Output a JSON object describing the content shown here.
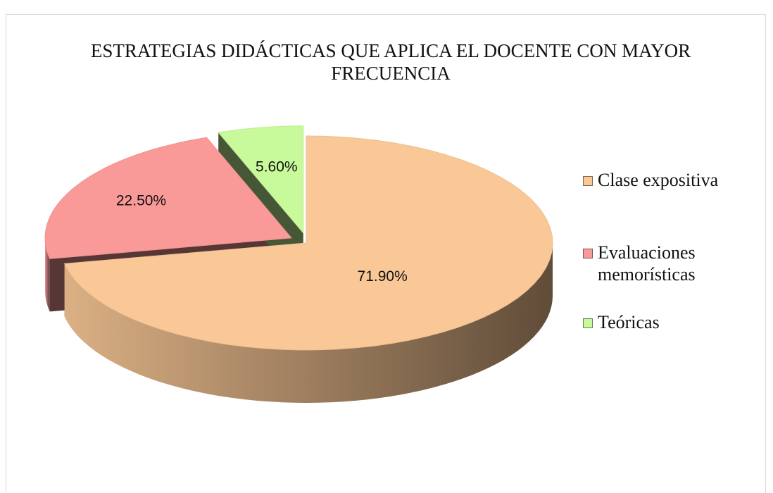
{
  "chart_data": {
    "type": "pie",
    "title": "ESTRATEGIAS DIDÁCTICAS QUE APLICA EL DOCENTE CON MAYOR FRECUENCIA",
    "categories": [
      "Clase expositiva",
      "Evaluaciones memorísticas",
      "Teóricas"
    ],
    "values": [
      71.9,
      22.5,
      5.6
    ],
    "value_labels": [
      "71.90%",
      "22.50%",
      "5.60%"
    ],
    "colors": [
      "#f9c896",
      "#f99a99",
      "#c8f99a"
    ],
    "legend": "right"
  }
}
